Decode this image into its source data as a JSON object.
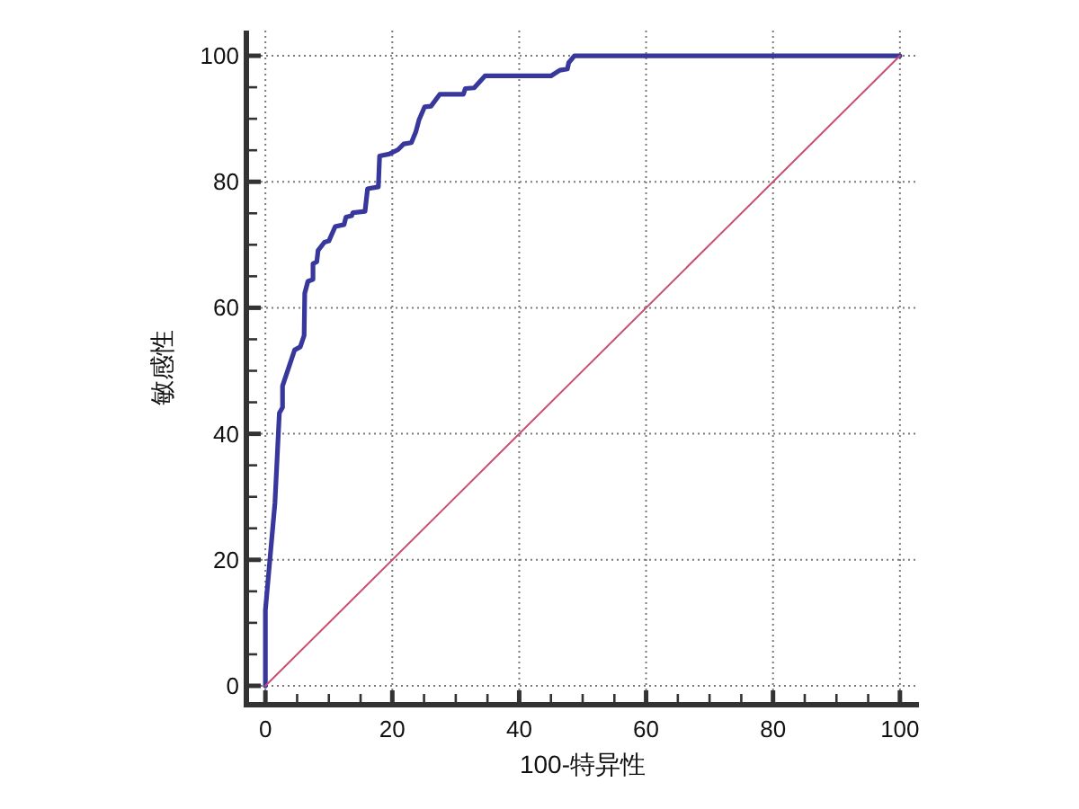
{
  "chart_data": {
    "type": "line",
    "xlabel": "100-特异性",
    "ylabel": "敏感性",
    "xlim": [
      -3,
      103
    ],
    "ylim": [
      -3,
      104
    ],
    "xticks": [
      0,
      20,
      40,
      60,
      80,
      100
    ],
    "yticks": [
      0,
      20,
      40,
      60,
      80,
      100
    ],
    "grid": true,
    "series": [
      {
        "color": "#38389c",
        "x": [
          0,
          0,
          1.5,
          2.2,
          2.7,
          2.7,
          4.6,
          5.5,
          6.1,
          6.2,
          6.7,
          7.5,
          7.5,
          8.1,
          8.3,
          9.3,
          10,
          11,
          12.4,
          12.7,
          13.6,
          13.8,
          15.7,
          16.1,
          17.8,
          18,
          19.5,
          20.9,
          21.8,
          23,
          23.7,
          24.2,
          25.1,
          26.1,
          27.5,
          31.2,
          31.5,
          32.9,
          34.6,
          45,
          46.4,
          47.6,
          47.8,
          48.7,
          100
        ],
        "values": [
          0,
          12,
          29,
          43.3,
          44.2,
          47.6,
          53.3,
          53.8,
          55.6,
          62.3,
          64.2,
          64.5,
          67,
          67.3,
          69.1,
          70.4,
          70.6,
          72.9,
          73.2,
          74.4,
          74.6,
          75.1,
          75.3,
          78.9,
          79.2,
          84.1,
          84.4,
          85.1,
          86,
          86.2,
          87.9,
          89.8,
          91.9,
          92,
          93.9,
          93.9,
          94.8,
          94.9,
          96.8,
          96.8,
          97.7,
          97.9,
          98.9,
          100,
          100
        ]
      },
      {
        "color": "#c8506e",
        "x": [
          0,
          100
        ],
        "values": [
          0,
          100
        ]
      }
    ]
  }
}
